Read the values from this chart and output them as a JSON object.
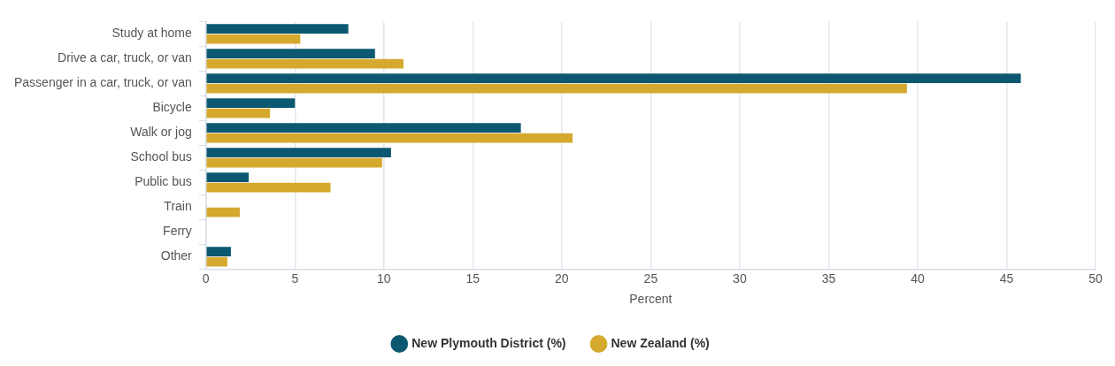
{
  "chart_data": {
    "type": "bar",
    "orientation": "horizontal",
    "xlabel": "Percent",
    "categories": [
      "Study at home",
      "Drive a car, truck, or van",
      "Passenger in a car, truck, or van",
      "Bicycle",
      "Walk or jog",
      "School bus",
      "Public bus",
      "Train",
      "Ferry",
      "Other"
    ],
    "series": [
      {
        "name": "New Plymouth District (%)",
        "color": "#0b5870",
        "values": [
          8.0,
          9.5,
          45.8,
          5.0,
          17.7,
          10.4,
          2.4,
          0,
          0,
          1.4
        ]
      },
      {
        "name": "New Zealand (%)",
        "color": "#d4a92e",
        "values": [
          5.3,
          11.1,
          39.4,
          3.6,
          20.6,
          9.9,
          7.0,
          1.9,
          0,
          1.2
        ]
      }
    ],
    "xlim": [
      0,
      50
    ],
    "xticks": [
      0,
      5,
      10,
      15,
      20,
      25,
      30,
      35,
      40,
      45,
      50
    ],
    "grid": "x",
    "legend": "bottom"
  }
}
